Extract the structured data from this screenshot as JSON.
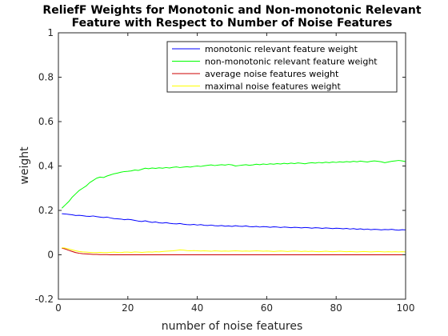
{
  "chart_data": {
    "type": "line",
    "title_line1": "ReliefF Weights for Monotonic and Non-monotonic Relevant",
    "title_line2": "Feature with Respect to Number of Noise Features",
    "xlabel": "number of noise features",
    "ylabel": "weight",
    "xlim": [
      0,
      100
    ],
    "ylim": [
      -0.2,
      1
    ],
    "xticks": [
      0,
      20,
      40,
      60,
      80,
      100
    ],
    "yticks": [
      -0.2,
      0,
      0.2,
      0.4,
      0.6,
      0.8,
      1
    ],
    "ytick_labels": [
      "-0.2",
      "0",
      "0.2",
      "0.4",
      "0.6",
      "0.8",
      "1"
    ],
    "grid": false,
    "legend_position": "top-right",
    "x": [
      1,
      2,
      3,
      4,
      5,
      6,
      7,
      8,
      9,
      10,
      11,
      12,
      13,
      14,
      15,
      16,
      17,
      18,
      19,
      20,
      21,
      22,
      23,
      24,
      25,
      26,
      27,
      28,
      29,
      30,
      31,
      32,
      33,
      34,
      35,
      36,
      37,
      38,
      39,
      40,
      41,
      42,
      43,
      44,
      45,
      46,
      47,
      48,
      49,
      50,
      51,
      52,
      53,
      54,
      55,
      56,
      57,
      58,
      59,
      60,
      61,
      62,
      63,
      64,
      65,
      66,
      67,
      68,
      69,
      70,
      71,
      72,
      73,
      74,
      75,
      76,
      77,
      78,
      79,
      80,
      81,
      82,
      83,
      84,
      85,
      86,
      87,
      88,
      89,
      90,
      91,
      92,
      93,
      94,
      95,
      96,
      97,
      98,
      99,
      100
    ],
    "series": [
      {
        "name": "monotonic relevant feature weight",
        "color": "#0000ff",
        "values": [
          0.185,
          0.184,
          0.182,
          0.18,
          0.177,
          0.178,
          0.176,
          0.174,
          0.173,
          0.175,
          0.172,
          0.17,
          0.168,
          0.17,
          0.166,
          0.163,
          0.162,
          0.161,
          0.158,
          0.16,
          0.158,
          0.155,
          0.152,
          0.15,
          0.153,
          0.149,
          0.146,
          0.148,
          0.144,
          0.143,
          0.145,
          0.142,
          0.14,
          0.139,
          0.141,
          0.138,
          0.136,
          0.135,
          0.137,
          0.134,
          0.136,
          0.133,
          0.132,
          0.134,
          0.131,
          0.13,
          0.132,
          0.129,
          0.13,
          0.128,
          0.131,
          0.129,
          0.128,
          0.13,
          0.127,
          0.126,
          0.128,
          0.125,
          0.127,
          0.126,
          0.124,
          0.126,
          0.125,
          0.123,
          0.125,
          0.124,
          0.122,
          0.124,
          0.123,
          0.121,
          0.123,
          0.122,
          0.12,
          0.122,
          0.121,
          0.119,
          0.121,
          0.12,
          0.118,
          0.12,
          0.119,
          0.117,
          0.119,
          0.116,
          0.118,
          0.115,
          0.117,
          0.114,
          0.116,
          0.113,
          0.115,
          0.114,
          0.112,
          0.114,
          0.113,
          0.115,
          0.112,
          0.111,
          0.113,
          0.112
        ]
      },
      {
        "name": "non-monotonic relevant feature weight",
        "color": "#00ff00",
        "values": [
          0.21,
          0.225,
          0.24,
          0.26,
          0.275,
          0.29,
          0.3,
          0.31,
          0.325,
          0.335,
          0.345,
          0.35,
          0.348,
          0.355,
          0.36,
          0.365,
          0.368,
          0.372,
          0.375,
          0.376,
          0.378,
          0.382,
          0.38,
          0.385,
          0.39,
          0.388,
          0.391,
          0.389,
          0.392,
          0.39,
          0.393,
          0.391,
          0.394,
          0.396,
          0.393,
          0.395,
          0.397,
          0.395,
          0.398,
          0.4,
          0.398,
          0.401,
          0.403,
          0.405,
          0.402,
          0.404,
          0.406,
          0.404,
          0.407,
          0.405,
          0.4,
          0.402,
          0.404,
          0.406,
          0.403,
          0.405,
          0.408,
          0.406,
          0.409,
          0.407,
          0.41,
          0.408,
          0.411,
          0.409,
          0.412,
          0.41,
          0.413,
          0.411,
          0.414,
          0.412,
          0.41,
          0.413,
          0.415,
          0.413,
          0.416,
          0.414,
          0.417,
          0.415,
          0.418,
          0.416,
          0.419,
          0.417,
          0.42,
          0.418,
          0.421,
          0.419,
          0.422,
          0.42,
          0.418,
          0.421,
          0.423,
          0.421,
          0.419,
          0.415,
          0.418,
          0.421,
          0.423,
          0.425,
          0.423,
          0.42
        ]
      },
      {
        "name": "average noise features weight",
        "color": "#cc0000",
        "values": [
          0.03,
          0.026,
          0.02,
          0.015,
          0.01,
          0.007,
          0.005,
          0.004,
          0.003,
          0.002,
          0.002,
          0.001,
          0.001,
          0.001,
          0.0,
          0.0,
          0.0,
          0.0,
          0.0,
          0.0,
          0.0,
          0.0,
          0.0,
          0.0,
          0.0,
          0.0,
          0.0,
          0.0,
          0.0,
          0.0,
          0.0,
          0.0,
          0.0,
          0.0,
          0.0,
          0.0,
          0.0,
          0.0,
          0.0,
          0.0,
          0.0,
          0.0,
          0.0,
          0.0,
          0.0,
          0.0,
          0.0,
          0.0,
          0.0,
          0.0,
          0.0,
          0.0,
          0.0,
          0.0,
          0.0,
          0.0,
          0.0,
          0.0,
          0.0,
          0.0,
          0.0,
          0.0,
          0.0,
          0.0,
          0.0,
          0.0,
          0.0,
          0.0,
          0.0,
          0.0,
          0.0,
          0.0,
          0.0,
          0.0,
          0.0,
          0.0,
          0.0,
          0.0,
          0.0,
          0.0,
          0.0,
          0.0,
          0.0,
          0.0,
          0.0,
          0.0,
          0.0,
          0.0,
          0.0,
          0.0,
          0.0,
          0.0,
          0.0,
          0.0,
          0.0,
          0.0,
          0.0,
          0.0,
          0.0,
          0.0
        ]
      },
      {
        "name": "maximal noise features weight",
        "color": "#ffff00",
        "values": [
          0.032,
          0.03,
          0.026,
          0.022,
          0.018,
          0.015,
          0.013,
          0.012,
          0.011,
          0.01,
          0.01,
          0.011,
          0.01,
          0.01,
          0.011,
          0.012,
          0.011,
          0.01,
          0.012,
          0.012,
          0.011,
          0.013,
          0.012,
          0.011,
          0.012,
          0.013,
          0.012,
          0.014,
          0.013,
          0.015,
          0.016,
          0.017,
          0.018,
          0.02,
          0.022,
          0.021,
          0.019,
          0.018,
          0.019,
          0.018,
          0.017,
          0.018,
          0.017,
          0.016,
          0.018,
          0.017,
          0.016,
          0.017,
          0.016,
          0.017,
          0.018,
          0.017,
          0.016,
          0.017,
          0.016,
          0.017,
          0.018,
          0.017,
          0.016,
          0.017,
          0.016,
          0.015,
          0.016,
          0.017,
          0.016,
          0.015,
          0.016,
          0.017,
          0.016,
          0.015,
          0.016,
          0.015,
          0.016,
          0.015,
          0.014,
          0.015,
          0.016,
          0.015,
          0.014,
          0.015,
          0.016,
          0.015,
          0.014,
          0.015,
          0.014,
          0.013,
          0.014,
          0.015,
          0.014,
          0.013,
          0.014,
          0.015,
          0.014,
          0.013,
          0.014,
          0.013,
          0.014,
          0.013,
          0.014,
          0.013
        ]
      }
    ]
  }
}
